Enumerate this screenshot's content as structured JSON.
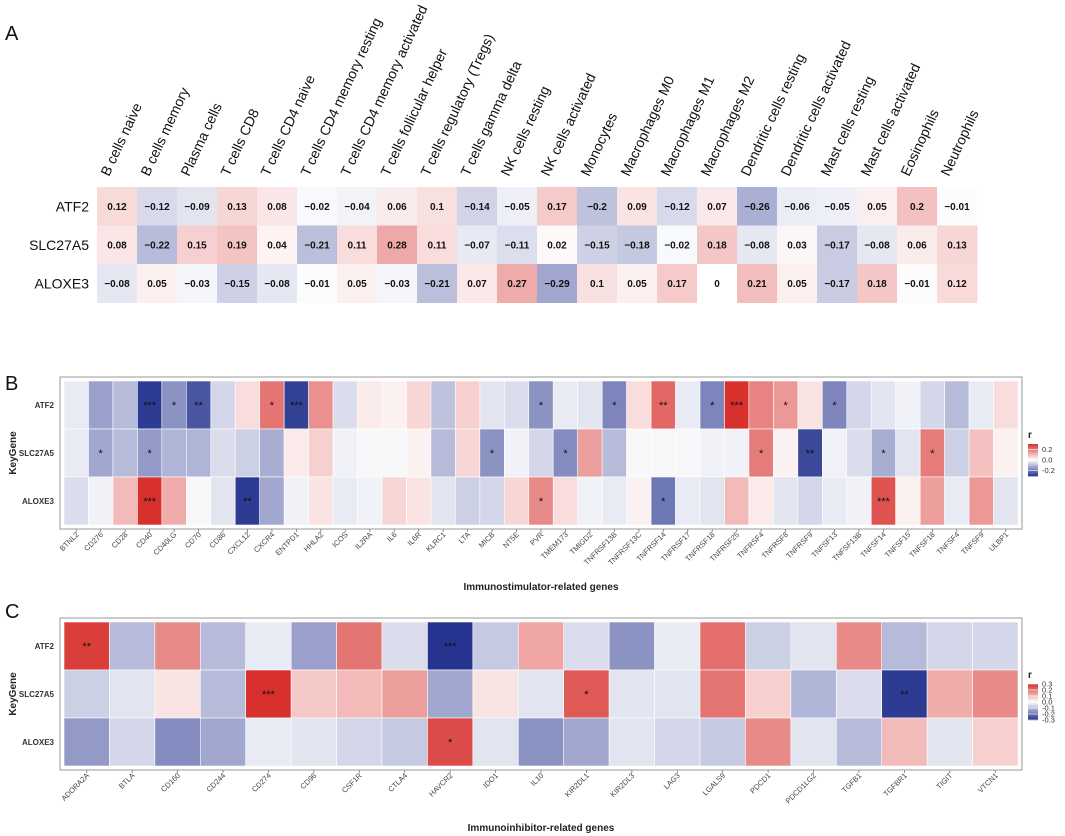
{
  "chart_data": [
    {
      "panel": "A",
      "type": "heatmap",
      "rows": [
        "ATF2",
        "SLC27A5",
        "ALOXE3"
      ],
      "columns": [
        "B cells naive",
        "B cells memory",
        "Plasma cells",
        "T cells CD8",
        "T cells CD4 naive",
        "T cells CD4 memory resting",
        "T cells CD4 memory activated",
        "T cells follicular helper",
        "T cells regulatory (Tregs)",
        "T cells gamma delta",
        "NK cells resting",
        "NK cells activated",
        "Monocytes",
        "Macrophages M0",
        "Macrophages M1",
        "Macrophages M2",
        "Dendritic cells resting",
        "Dendritic cells activated",
        "Mast cells resting",
        "Mast cells activated",
        "Eosinophils",
        "Neutrophils"
      ],
      "values": [
        [
          0.12,
          -0.12,
          -0.09,
          0.13,
          0.08,
          -0.02,
          -0.04,
          0.06,
          0.1,
          -0.14,
          -0.05,
          0.17,
          -0.2,
          0.09,
          -0.12,
          0.07,
          -0.26,
          -0.06,
          -0.05,
          0.05,
          0.2,
          -0.01
        ],
        [
          0.08,
          -0.22,
          0.15,
          0.19,
          0.04,
          -0.21,
          0.11,
          0.28,
          0.11,
          -0.07,
          -0.11,
          0.02,
          -0.15,
          -0.18,
          -0.02,
          0.18,
          -0.08,
          0.03,
          -0.17,
          -0.08,
          0.06,
          0.13
        ],
        [
          -0.08,
          0.05,
          -0.03,
          -0.15,
          -0.08,
          -0.01,
          0.05,
          -0.03,
          -0.21,
          0.07,
          0.27,
          -0.29,
          0.1,
          0.05,
          0.17,
          0,
          0.21,
          0.05,
          -0.17,
          0.18,
          -0.01,
          0.12
        ]
      ],
      "labels": [
        [
          "0.12",
          "−0.12",
          "−0.09",
          "0.13",
          "0.08",
          "−0.02",
          "−0.04",
          "0.06",
          "0.1",
          "−0.14",
          "−0.05",
          "0.17",
          "−0.2",
          "0.09",
          "−0.12",
          "0.07",
          "−0.26",
          "−0.06",
          "−0.05",
          "0.05",
          "0.2",
          "−0.01"
        ],
        [
          "0.08",
          "−0.22",
          "0.15",
          "0.19",
          "0.04",
          "−0.21",
          "0.11",
          "0.28",
          "0.11",
          "−0.07",
          "−0.11",
          "0.02",
          "−0.15",
          "−0.18",
          "−0.02",
          "0.18",
          "−0.08",
          "0.03",
          "−0.17",
          "−0.08",
          "0.06",
          "0.13"
        ],
        [
          "−0.08",
          "0.05",
          "−0.03",
          "−0.15",
          "−0.08",
          "−0.01",
          "0.05",
          "−0.03",
          "−0.21",
          "0.07",
          "0.27",
          "−0.29",
          "0.1",
          "0.05",
          "0.17",
          "0",
          "0.21",
          "0.05",
          "−0.17",
          "0.18",
          "−0.01",
          "0.12"
        ]
      ],
      "color_range": [
        -0.3,
        0.3
      ]
    },
    {
      "panel": "B",
      "type": "heatmap",
      "rows": [
        "ATF2",
        "SLC27A5",
        "ALOXE3"
      ],
      "y_title": "KeyGene",
      "x_title": "Immunostimulator-related genes",
      "columns": [
        "BTNL2",
        "CD276",
        "CD28",
        "CD40",
        "CD40LG",
        "CD70",
        "CD86",
        "CXCL12",
        "CXCR4",
        "ENTPD1",
        "HHLA2",
        "ICOS",
        "IL2RA",
        "IL6",
        "IL6R",
        "KLRC1",
        "LTA",
        "MICB",
        "NT5E",
        "PVR",
        "TMEM173",
        "TMIGD2",
        "TNFRSF13B",
        "TNFRSF13C",
        "TNFRSF14",
        "TNFRSF17",
        "TNFRSF18",
        "TNFRSF25",
        "TNFRSF4",
        "TNFRSF8",
        "TNFRSF9",
        "TNFSF13",
        "TNFSF13B",
        "TNFSF14",
        "TNFSF15",
        "TNFSF18",
        "TNFSF4",
        "TNFSF9",
        "ULBP1"
      ],
      "values": [
        [
          -0.03,
          -0.14,
          -0.1,
          -0.29,
          -0.16,
          -0.25,
          -0.06,
          0.05,
          0.2,
          -0.28,
          0.16,
          -0.05,
          0.03,
          0.02,
          0.06,
          -0.09,
          0.07,
          -0.04,
          -0.05,
          -0.16,
          -0.03,
          -0.04,
          -0.18,
          0.05,
          0.22,
          -0.03,
          -0.18,
          0.31,
          0.18,
          0.15,
          0.04,
          -0.18,
          -0.06,
          -0.04,
          -0.02,
          -0.06,
          -0.1,
          -0.03,
          0.05
        ],
        [
          -0.03,
          -0.13,
          -0.1,
          -0.15,
          -0.11,
          -0.11,
          -0.05,
          -0.07,
          -0.12,
          0.03,
          0.07,
          -0.02,
          -0.01,
          -0.01,
          0.02,
          -0.1,
          0.06,
          -0.16,
          -0.02,
          -0.06,
          -0.17,
          0.14,
          -0.1,
          -0.01,
          -0.01,
          -0.01,
          -0.02,
          -0.02,
          0.19,
          0.02,
          -0.27,
          -0.02,
          -0.05,
          -0.12,
          -0.04,
          0.19,
          -0.07,
          0.09,
          0.02
        ],
        [
          -0.05,
          -0.02,
          0.1,
          0.3,
          0.12,
          -0.01,
          -0.04,
          -0.29,
          -0.13,
          -0.02,
          0.04,
          -0.03,
          -0.02,
          0.06,
          0.04,
          -0.04,
          -0.07,
          -0.06,
          0.06,
          0.17,
          0.05,
          -0.02,
          -0.03,
          0.02,
          -0.2,
          -0.03,
          -0.04,
          0.1,
          0.03,
          -0.04,
          -0.06,
          -0.03,
          -0.02,
          0.25,
          0.02,
          0.14,
          -0.03,
          0.15,
          -0.04
        ]
      ],
      "stars": [
        [
          "",
          "",
          "",
          "***",
          "*",
          "**",
          "",
          "",
          "*",
          "***",
          "",
          "",
          "",
          "",
          "",
          "",
          "",
          "",
          "",
          "*",
          "",
          "",
          "*",
          "",
          "**",
          "",
          "*",
          "***",
          "",
          "*",
          "",
          "*",
          "",
          "",
          "",
          "",
          "",
          "",
          ""
        ],
        [
          "",
          "*",
          "",
          "*",
          "",
          "",
          "",
          "",
          "",
          "",
          "",
          "",
          "",
          "",
          "",
          "",
          "",
          "*",
          "",
          "",
          "*",
          "",
          "",
          "",
          "",
          "",
          "",
          "",
          "*",
          "",
          "**",
          "",
          "",
          "*",
          "",
          "*",
          "",
          "",
          ""
        ],
        [
          "",
          "",
          "",
          "***",
          "",
          "",
          "",
          "**",
          "",
          "",
          "",
          "",
          "",
          "",
          "",
          "",
          "",
          "",
          "",
          "*",
          "",
          "",
          "",
          "",
          "*",
          "",
          "",
          "",
          "",
          "",
          "",
          "",
          "",
          "***",
          "",
          "",
          "",
          "",
          ""
        ]
      ],
      "legend": {
        "title": "r",
        "ticks": [
          "0.2",
          "0.0",
          "-0.2"
        ],
        "tick_values": [
          0.2,
          0.0,
          -0.2
        ],
        "range": [
          -0.3,
          0.3
        ]
      }
    },
    {
      "panel": "C",
      "type": "heatmap",
      "rows": [
        "ATF2",
        "SLC27A5",
        "ALOXE3"
      ],
      "y_title": "KeyGene",
      "x_title": "Immunoinhibitor-related genes",
      "columns": [
        "ADORA2A",
        "BTLA",
        "CD160",
        "CD244",
        "CD274",
        "CD96",
        "CSF1R",
        "CTLA4",
        "HAVCR2",
        "IDO1",
        "IL10",
        "KIR2DL1",
        "KIR2DL3",
        "LAG3",
        "LGALS9",
        "PDCD1",
        "PDCD1LG2",
        "TGFB1",
        "TGFBR1",
        "TIGIT",
        "VTCN1"
      ],
      "values": [
        [
          0.28,
          -0.1,
          0.17,
          -0.1,
          -0.03,
          -0.14,
          0.2,
          -0.05,
          -0.3,
          -0.08,
          0.13,
          -0.05,
          -0.16,
          -0.03,
          0.21,
          -0.07,
          -0.04,
          0.17,
          -0.1,
          -0.06,
          -0.06
        ],
        [
          -0.07,
          -0.04,
          0.04,
          -0.1,
          0.3,
          0.08,
          0.1,
          0.14,
          -0.13,
          0.04,
          -0.04,
          0.24,
          -0.04,
          -0.04,
          0.2,
          0.07,
          -0.11,
          -0.05,
          -0.29,
          0.12,
          0.17
        ],
        [
          -0.15,
          -0.06,
          -0.17,
          -0.13,
          -0.03,
          -0.04,
          -0.06,
          -0.08,
          0.26,
          -0.04,
          -0.16,
          -0.13,
          -0.04,
          -0.06,
          -0.08,
          0.17,
          -0.04,
          -0.1,
          0.1,
          -0.04,
          0.07
        ]
      ],
      "stars": [
        [
          "**",
          "",
          "",
          "",
          "",
          "",
          "",
          "",
          "***",
          "",
          "",
          "",
          "",
          "",
          "",
          "",
          "",
          "",
          "",
          "",
          ""
        ],
        [
          "",
          "",
          "",
          "",
          "***",
          "",
          "",
          "",
          "",
          "",
          "",
          "*",
          "",
          "",
          "",
          "",
          "",
          "",
          "**",
          "",
          ""
        ],
        [
          "",
          "",
          "",
          "",
          "",
          "",
          "",
          "",
          "*",
          "",
          "",
          "",
          "",
          "",
          "",
          "",
          "",
          "",
          "",
          "",
          ""
        ]
      ],
      "legend": {
        "title": "r",
        "ticks": [
          "0.3",
          "0.2",
          "0.1",
          "0.0",
          "-0.1",
          "-0.2",
          "-0.3"
        ],
        "tick_values": [
          0.3,
          0.2,
          0.1,
          0.0,
          -0.1,
          -0.2,
          -0.3
        ],
        "range": [
          -0.3,
          0.3
        ]
      }
    }
  ],
  "panel_labels": [
    "A",
    "B",
    "C"
  ],
  "colors": {
    "negative": "#26348f",
    "neutral": "#ffffff",
    "positive": "#d7302d"
  }
}
